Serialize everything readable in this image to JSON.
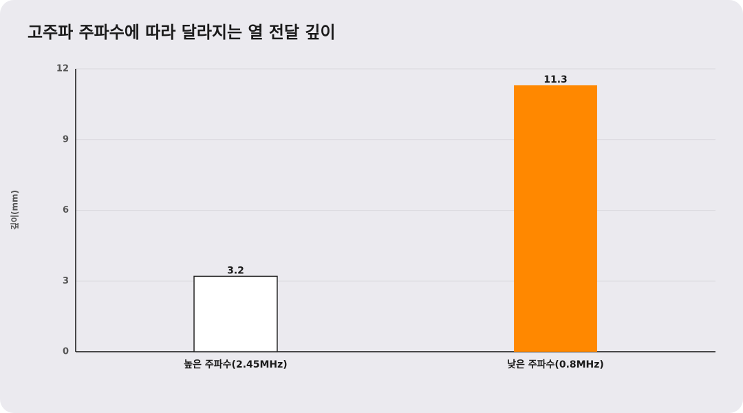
{
  "chart_data": {
    "type": "bar",
    "title": "고주파 주파수에 따라 달라지는 열 전달 깊이",
    "y_label": "깊이(mm)",
    "categories": [
      "높은 주파수(2.45MHz)",
      "낮은 주파수(0.8MHz)"
    ],
    "values": [
      3.2,
      11.3
    ],
    "colors": [
      "#ffffff",
      "#ff8800"
    ],
    "ylim": [
      0,
      12
    ],
    "yticks": [
      0,
      3,
      6,
      9,
      12
    ],
    "grid": true
  }
}
